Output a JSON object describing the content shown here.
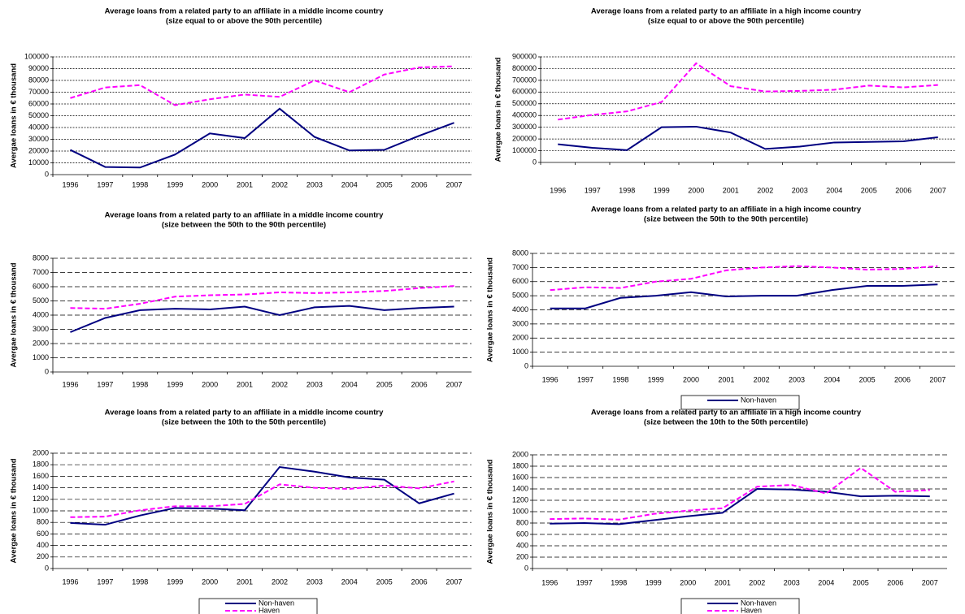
{
  "chart_data": [
    {
      "type": "line",
      "title": "Average loans from a related party to an affiliate in a middle income country",
      "subtitle": "(size equal to or above the 90th percentile)",
      "y_label": "Avergae loans in € thousand",
      "categories": [
        "1996",
        "1997",
        "1998",
        "1999",
        "2000",
        "2001",
        "2002",
        "2003",
        "2004",
        "2005",
        "2006",
        "2007"
      ],
      "series": [
        {
          "color": "#000080",
          "line_style": "solid",
          "values": [
            21000,
            6500,
            6000,
            17000,
            35000,
            31000,
            56000,
            32000,
            20500,
            21000,
            33000,
            44000
          ]
        },
        {
          "color": "#ff00ff",
          "line_style": "dashed",
          "values": [
            65000,
            74000,
            76000,
            59000,
            64000,
            68000,
            66000,
            80000,
            70000,
            85000,
            91000,
            92000
          ]
        }
      ],
      "ylim": [
        0,
        100000
      ],
      "yticks": [
        0,
        10000,
        20000,
        30000,
        40000,
        50000,
        60000,
        70000,
        80000,
        90000,
        100000
      ],
      "grid": true
    },
    {
      "type": "line",
      "title": "Average loans from a related party to an affiliate in a high income country",
      "subtitle": "(size equal to or above the 90th percentile)",
      "y_label": "Avergae loans in € thousand",
      "categories": [
        "1996",
        "1997",
        "1998",
        "1999",
        "2000",
        "2001",
        "2002",
        "2003",
        "2004",
        "2005",
        "2006",
        "2007"
      ],
      "series": [
        {
          "color": "#000080",
          "line_style": "solid",
          "values": [
            155000,
            125000,
            105000,
            300000,
            305000,
            255000,
            115000,
            135000,
            170000,
            175000,
            180000,
            215000
          ]
        },
        {
          "color": "#ff00ff",
          "line_style": "dashed",
          "values": [
            365000,
            405000,
            435000,
            515000,
            845000,
            650000,
            605000,
            610000,
            620000,
            655000,
            640000,
            660000
          ]
        }
      ],
      "ylim": [
        0,
        900000
      ],
      "yticks": [
        0,
        100000,
        200000,
        300000,
        400000,
        500000,
        600000,
        700000,
        800000,
        900000
      ],
      "grid": true
    },
    {
      "type": "line",
      "title": "Average loans from a related party to an affiliate in a middle income country",
      "subtitle": "(size between the 50th to the 90th percentile)",
      "y_label": "Avergae loans in € thousand",
      "categories": [
        "1996",
        "1997",
        "1998",
        "1999",
        "2000",
        "2001",
        "2002",
        "2003",
        "2004",
        "2005",
        "2006",
        "2007"
      ],
      "series": [
        {
          "color": "#000080",
          "line_style": "solid",
          "values": [
            2800,
            3800,
            4350,
            4450,
            4400,
            4600,
            4000,
            4550,
            4650,
            4350,
            4500,
            4600
          ]
        },
        {
          "color": "#ff00ff",
          "line_style": "dashed",
          "values": [
            4500,
            4450,
            4800,
            5300,
            5400,
            5450,
            5600,
            5550,
            5600,
            5700,
            5900,
            6050
          ]
        }
      ],
      "ylim": [
        0,
        8000
      ],
      "yticks": [
        0,
        1000,
        2000,
        3000,
        4000,
        5000,
        6000,
        7000,
        8000
      ],
      "grid": true
    },
    {
      "type": "line",
      "title": "Average loans from a related party to an affiliate in a high income country",
      "subtitle": "(size between the 50th to the 90th percentile)",
      "y_label": "Avergae loans in € thousand",
      "categories": [
        "1996",
        "1997",
        "1998",
        "1999",
        "2000",
        "2001",
        "2002",
        "2003",
        "2004",
        "2005",
        "2006",
        "2007"
      ],
      "series": [
        {
          "name": "Non-haven",
          "color": "#000080",
          "line_style": "solid",
          "values": [
            4100,
            4100,
            4850,
            5000,
            5250,
            4950,
            5000,
            5000,
            5400,
            5700,
            5700,
            5800
          ]
        },
        {
          "color": "#ff00ff",
          "line_style": "dashed",
          "values": [
            5400,
            5600,
            5550,
            6000,
            6200,
            6800,
            7000,
            7100,
            7000,
            6850,
            6900,
            7100
          ]
        }
      ],
      "ylim": [
        0,
        8000
      ],
      "yticks": [
        0,
        1000,
        2000,
        3000,
        4000,
        5000,
        6000,
        7000,
        8000
      ],
      "grid": true,
      "legend": "bottom"
    },
    {
      "type": "line",
      "title": "Average loans from a related party to an affiliate in a middle income country",
      "subtitle": "(size between the 10th to the 50th percentile)",
      "y_label": "Avergae loans in € thousand",
      "categories": [
        "1996",
        "1997",
        "1998",
        "1999",
        "2000",
        "2001",
        "2002",
        "2003",
        "2004",
        "2005",
        "2006",
        "2007"
      ],
      "series": [
        {
          "name": "Non-haven",
          "color": "#000080",
          "line_style": "solid",
          "values": [
            790,
            760,
            920,
            1050,
            1040,
            1010,
            1760,
            1680,
            1580,
            1540,
            1130,
            1300
          ]
        },
        {
          "name": "Haven",
          "color": "#ff00ff",
          "line_style": "dashed",
          "values": [
            890,
            900,
            1010,
            1080,
            1080,
            1120,
            1460,
            1400,
            1380,
            1440,
            1390,
            1510
          ]
        }
      ],
      "ylim": [
        0,
        2000
      ],
      "yticks": [
        0,
        200,
        400,
        600,
        800,
        1000,
        1200,
        1400,
        1600,
        1800,
        2000
      ],
      "grid": true,
      "legend": "bottom"
    },
    {
      "type": "line",
      "title": "Average loans from a related party to an affiliate in a high income country",
      "subtitle": "(size between the 10th to the 50th percentile)",
      "y_label": "Avergae loans in € thousand",
      "categories": [
        "1996",
        "1997",
        "1998",
        "1999",
        "2000",
        "2001",
        "2002",
        "2003",
        "2004",
        "2005",
        "2006",
        "2007"
      ],
      "series": [
        {
          "name": "Non-haven",
          "color": "#000080",
          "line_style": "solid",
          "values": [
            790,
            800,
            780,
            850,
            920,
            980,
            1400,
            1390,
            1350,
            1270,
            1280,
            1270
          ]
        },
        {
          "name": "Haven",
          "color": "#ff00ff",
          "line_style": "dashed",
          "values": [
            870,
            880,
            860,
            960,
            1020,
            1060,
            1440,
            1470,
            1320,
            1770,
            1350,
            1380
          ]
        }
      ],
      "ylim": [
        0,
        2000
      ],
      "yticks": [
        0,
        200,
        400,
        600,
        800,
        1000,
        1200,
        1400,
        1600,
        1800,
        2000
      ],
      "grid": true,
      "legend": "bottom"
    }
  ]
}
